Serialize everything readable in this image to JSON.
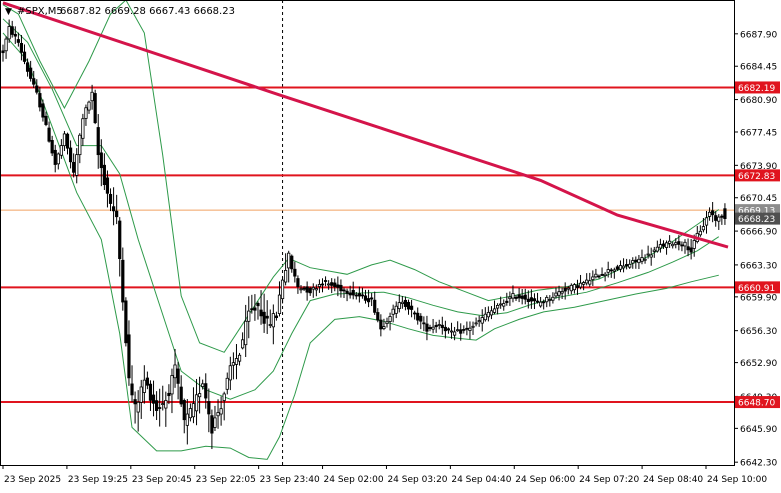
{
  "header": {
    "symbol": "#SPX,M5",
    "ohlc": "6687.82 6669.28 6667.43 6668.23"
  },
  "colors": {
    "background": "#ffffff",
    "candle": "#000000",
    "bollinger": "#2e9a4a",
    "moving_average": "#d4144a",
    "level_line": "#e0141e",
    "last_price_line": "#f0a060",
    "label_bg_red": "#e0141e",
    "label_bg_gray": "#8c8c8c",
    "label_bg_dark": "#505050"
  },
  "chart_data": {
    "type": "candlestick",
    "symbol": "#SPX",
    "timeframe": "M5",
    "ylim": [
      6642,
      6691.5
    ],
    "y_tick_labels": [
      "6687.90",
      "6684.45",
      "6680.90",
      "6677.45",
      "6673.90",
      "6670.45",
      "6666.90",
      "6663.30",
      "6659.90",
      "6656.30",
      "6652.90",
      "6649.30",
      "6645.90",
      "6642.30"
    ],
    "x_tick_labels": [
      "23 Sep 2025",
      "23 Sep 19:25",
      "23 Sep 20:45",
      "23 Sep 22:05",
      "23 Sep 23:40",
      "24 Sep 02:00",
      "24 Sep 03:20",
      "24 Sep 04:40",
      "24 Sep 06:00",
      "24 Sep 07:20",
      "24 Sep 08:40",
      "24 Sep 10:00"
    ],
    "x_range": [
      0,
      236
    ],
    "vertical_separator_index": 91,
    "horizontal_levels": [
      {
        "value": 6682.19,
        "label": "6682.19"
      },
      {
        "value": 6672.83,
        "label": "6672.83"
      },
      {
        "value": 6660.91,
        "label": "6660.91"
      },
      {
        "value": 6648.7,
        "label": "6648.70"
      }
    ],
    "price_labels": [
      {
        "value": 6669.13,
        "label": "6669.13",
        "style": "gray"
      },
      {
        "value": 6668.23,
        "label": "6668.23",
        "style": "dark"
      }
    ],
    "last_price_line": 6669.13,
    "moving_average": [
      {
        "x": 0,
        "y": 6691.2
      },
      {
        "x": 90,
        "y": 6681.4
      },
      {
        "x": 175,
        "y": 6672.3
      },
      {
        "x": 200,
        "y": 6668.6
      },
      {
        "x": 236,
        "y": 6665.2
      }
    ],
    "bollinger_upper": [
      {
        "x": 0,
        "y": 6691
      },
      {
        "x": 5,
        "y": 6690
      },
      {
        "x": 12,
        "y": 6685
      },
      {
        "x": 20,
        "y": 6680
      },
      {
        "x": 28,
        "y": 6685
      },
      {
        "x": 35,
        "y": 6690
      },
      {
        "x": 40,
        "y": 6691.5
      },
      {
        "x": 46,
        "y": 6688
      },
      {
        "x": 52,
        "y": 6675
      },
      {
        "x": 58,
        "y": 6660
      },
      {
        "x": 64,
        "y": 6655
      },
      {
        "x": 72,
        "y": 6654
      },
      {
        "x": 80,
        "y": 6658
      },
      {
        "x": 88,
        "y": 6662
      },
      {
        "x": 93,
        "y": 6664
      },
      {
        "x": 100,
        "y": 6663
      },
      {
        "x": 112,
        "y": 6662.3
      },
      {
        "x": 120,
        "y": 6663.3
      },
      {
        "x": 126,
        "y": 6663.8
      },
      {
        "x": 134,
        "y": 6662.8
      },
      {
        "x": 142,
        "y": 6661.5
      },
      {
        "x": 150,
        "y": 6660.5
      },
      {
        "x": 158,
        "y": 6659.5
      },
      {
        "x": 166,
        "y": 6660
      },
      {
        "x": 174,
        "y": 6660.6
      },
      {
        "x": 184,
        "y": 6661
      },
      {
        "x": 194,
        "y": 6661.8
      },
      {
        "x": 202,
        "y": 6663
      },
      {
        "x": 210,
        "y": 6664.2
      },
      {
        "x": 218,
        "y": 6665.8
      },
      {
        "x": 226,
        "y": 6667.6
      },
      {
        "x": 233,
        "y": 6669.2
      }
    ],
    "bollinger_lower": [
      {
        "x": 0,
        "y": 6688
      },
      {
        "x": 8,
        "y": 6685
      },
      {
        "x": 16,
        "y": 6678
      },
      {
        "x": 24,
        "y": 6671
      },
      {
        "x": 32,
        "y": 6666
      },
      {
        "x": 38,
        "y": 6656
      },
      {
        "x": 42,
        "y": 6646
      },
      {
        "x": 50,
        "y": 6643.5
      },
      {
        "x": 58,
        "y": 6643.5
      },
      {
        "x": 66,
        "y": 6644
      },
      {
        "x": 74,
        "y": 6643.8
      },
      {
        "x": 80,
        "y": 6642.8
      },
      {
        "x": 86,
        "y": 6642.6
      },
      {
        "x": 90,
        "y": 6645
      },
      {
        "x": 95,
        "y": 6649.5
      },
      {
        "x": 100,
        "y": 6655
      },
      {
        "x": 108,
        "y": 6657.5
      },
      {
        "x": 116,
        "y": 6657.8
      },
      {
        "x": 124,
        "y": 6657.3
      },
      {
        "x": 132,
        "y": 6656.5
      },
      {
        "x": 140,
        "y": 6655.8
      },
      {
        "x": 148,
        "y": 6655.5
      },
      {
        "x": 154,
        "y": 6655.3
      },
      {
        "x": 160,
        "y": 6656.5
      },
      {
        "x": 168,
        "y": 6657.5
      },
      {
        "x": 176,
        "y": 6658.3
      },
      {
        "x": 186,
        "y": 6658.8
      },
      {
        "x": 196,
        "y": 6659.5
      },
      {
        "x": 206,
        "y": 6660.2
      },
      {
        "x": 216,
        "y": 6660.8
      },
      {
        "x": 224,
        "y": 6661.5
      },
      {
        "x": 233,
        "y": 6662.2
      }
    ],
    "bollinger_middle": [
      {
        "x": 0,
        "y": 6689.5
      },
      {
        "x": 8,
        "y": 6687
      },
      {
        "x": 16,
        "y": 6682
      },
      {
        "x": 24,
        "y": 6676
      },
      {
        "x": 32,
        "y": 6676
      },
      {
        "x": 38,
        "y": 6673
      },
      {
        "x": 44,
        "y": 6666
      },
      {
        "x": 50,
        "y": 6660
      },
      {
        "x": 58,
        "y": 6652
      },
      {
        "x": 66,
        "y": 6650
      },
      {
        "x": 74,
        "y": 6649
      },
      {
        "x": 82,
        "y": 6650
      },
      {
        "x": 88,
        "y": 6652
      },
      {
        "x": 94,
        "y": 6656
      },
      {
        "x": 100,
        "y": 6659.5
      },
      {
        "x": 108,
        "y": 6660.2
      },
      {
        "x": 116,
        "y": 6660.3
      },
      {
        "x": 124,
        "y": 6660.4
      },
      {
        "x": 132,
        "y": 6659.8
      },
      {
        "x": 140,
        "y": 6659
      },
      {
        "x": 148,
        "y": 6658.3
      },
      {
        "x": 156,
        "y": 6657.9
      },
      {
        "x": 164,
        "y": 6658.2
      },
      {
        "x": 172,
        "y": 6659.1
      },
      {
        "x": 180,
        "y": 6659.8
      },
      {
        "x": 190,
        "y": 6660.4
      },
      {
        "x": 200,
        "y": 6661.4
      },
      {
        "x": 210,
        "y": 6662.5
      },
      {
        "x": 218,
        "y": 6663.6
      },
      {
        "x": 226,
        "y": 6664.8
      },
      {
        "x": 233,
        "y": 6666.3
      }
    ],
    "price_path": [
      {
        "x": 0,
        "y": 6686
      },
      {
        "x": 2,
        "y": 6688.5
      },
      {
        "x": 5,
        "y": 6687
      },
      {
        "x": 8,
        "y": 6684
      },
      {
        "x": 11,
        "y": 6681.5
      },
      {
        "x": 14,
        "y": 6678
      },
      {
        "x": 17,
        "y": 6674
      },
      {
        "x": 20,
        "y": 6677
      },
      {
        "x": 23,
        "y": 6673
      },
      {
        "x": 26,
        "y": 6679
      },
      {
        "x": 29,
        "y": 6681.5
      },
      {
        "x": 31,
        "y": 6675
      },
      {
        "x": 34,
        "y": 6671
      },
      {
        "x": 37,
        "y": 6668
      },
      {
        "x": 39,
        "y": 6660
      },
      {
        "x": 41,
        "y": 6651
      },
      {
        "x": 43,
        "y": 6648
      },
      {
        "x": 46,
        "y": 6651
      },
      {
        "x": 50,
        "y": 6648
      },
      {
        "x": 53,
        "y": 6649
      },
      {
        "x": 56,
        "y": 6652
      },
      {
        "x": 59,
        "y": 6646.5
      },
      {
        "x": 62,
        "y": 6648
      },
      {
        "x": 65,
        "y": 6651
      },
      {
        "x": 68,
        "y": 6646
      },
      {
        "x": 71,
        "y": 6648.5
      },
      {
        "x": 74,
        "y": 6652
      },
      {
        "x": 77,
        "y": 6654
      },
      {
        "x": 80,
        "y": 6658
      },
      {
        "x": 83,
        "y": 6659
      },
      {
        "x": 86,
        "y": 6657
      },
      {
        "x": 89,
        "y": 6658
      },
      {
        "x": 91,
        "y": 6662
      },
      {
        "x": 93,
        "y": 6664
      },
      {
        "x": 96,
        "y": 6661
      },
      {
        "x": 100,
        "y": 6660.5
      },
      {
        "x": 104,
        "y": 6661.5
      },
      {
        "x": 108,
        "y": 6661
      },
      {
        "x": 112,
        "y": 6660.5
      },
      {
        "x": 116,
        "y": 6660
      },
      {
        "x": 120,
        "y": 6659.5
      },
      {
        "x": 123,
        "y": 6656.5
      },
      {
        "x": 126,
        "y": 6658
      },
      {
        "x": 130,
        "y": 6659.5
      },
      {
        "x": 134,
        "y": 6658
      },
      {
        "x": 138,
        "y": 6656.5
      },
      {
        "x": 142,
        "y": 6657
      },
      {
        "x": 146,
        "y": 6656
      },
      {
        "x": 150,
        "y": 6656.3
      },
      {
        "x": 154,
        "y": 6657
      },
      {
        "x": 158,
        "y": 6658.2
      },
      {
        "x": 162,
        "y": 6659
      },
      {
        "x": 166,
        "y": 6660
      },
      {
        "x": 170,
        "y": 6659.8
      },
      {
        "x": 174,
        "y": 6659.2
      },
      {
        "x": 178,
        "y": 6659.8
      },
      {
        "x": 182,
        "y": 6660.6
      },
      {
        "x": 186,
        "y": 6661
      },
      {
        "x": 190,
        "y": 6661.5
      },
      {
        "x": 194,
        "y": 6662.3
      },
      {
        "x": 198,
        "y": 6662.8
      },
      {
        "x": 202,
        "y": 6663.1
      },
      {
        "x": 206,
        "y": 6663.7
      },
      {
        "x": 210,
        "y": 6664.3
      },
      {
        "x": 214,
        "y": 6665.3
      },
      {
        "x": 218,
        "y": 6665.7
      },
      {
        "x": 222,
        "y": 6665.5
      },
      {
        "x": 224,
        "y": 6664.8
      },
      {
        "x": 226,
        "y": 6666.5
      },
      {
        "x": 228,
        "y": 6667.5
      },
      {
        "x": 230,
        "y": 6669
      },
      {
        "x": 232,
        "y": 6668.2
      },
      {
        "x": 234,
        "y": 6668.3
      },
      {
        "x": 235,
        "y": 6668.23
      }
    ],
    "title": "",
    "xlabel": "",
    "ylabel": "",
    "grid": false,
    "legend": "none"
  }
}
